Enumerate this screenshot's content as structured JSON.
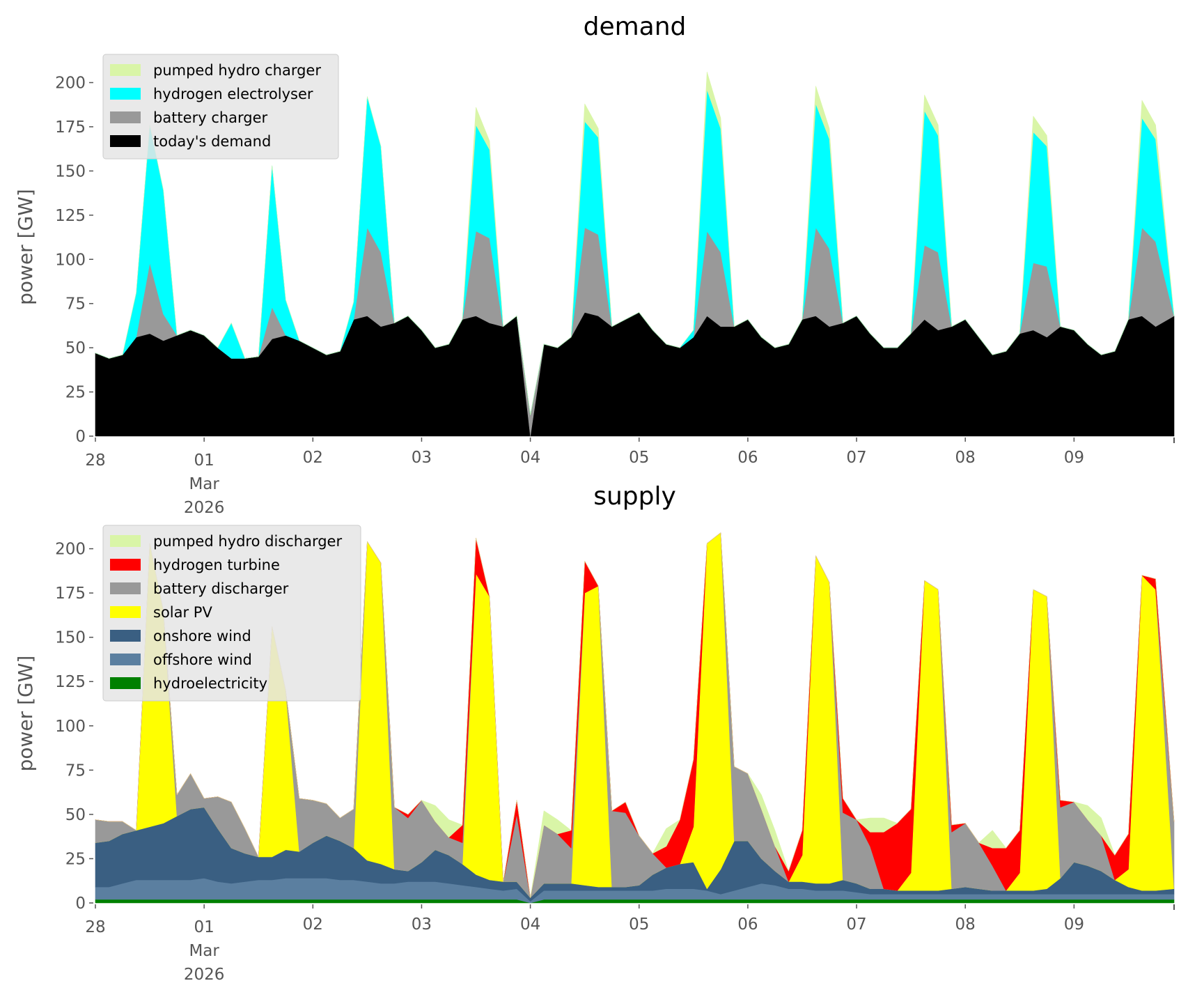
{
  "chart_data": [
    {
      "type": "area",
      "stacked": true,
      "title": "demand",
      "xlabel": "",
      "ylabel": "power [GW]",
      "x_unit": "days since 2026-02-28 00:00",
      "xlim": [
        0,
        9.92
      ],
      "ylim": [
        0,
        214
      ],
      "yticks": [
        0,
        25,
        50,
        75,
        100,
        125,
        150,
        175,
        200
      ],
      "xticks": [
        {
          "value": 0,
          "label": "28"
        },
        {
          "value": 1,
          "label": "01",
          "sublabel": "Mar",
          "sublabel2": "2026"
        },
        {
          "value": 2,
          "label": "02"
        },
        {
          "value": 3,
          "label": "03"
        },
        {
          "value": 4,
          "label": "04"
        },
        {
          "value": 5,
          "label": "05"
        },
        {
          "value": 6,
          "label": "06"
        },
        {
          "value": 7,
          "label": "07"
        },
        {
          "value": 8,
          "label": "08"
        },
        {
          "value": 9,
          "label": "09"
        }
      ],
      "grid": false,
      "legend_position": "top-left",
      "step_days": 0.125,
      "series": [
        {
          "name": "today's demand",
          "color": "#000000",
          "values": [
            47,
            44,
            46,
            56,
            58,
            54,
            57,
            60,
            57,
            50,
            44,
            44,
            45,
            55,
            57,
            54,
            50,
            46,
            48,
            66,
            68,
            62,
            64,
            68,
            60,
            50,
            52,
            66,
            68,
            64,
            62,
            68,
            0,
            52,
            50,
            56,
            70,
            68,
            62,
            66,
            70,
            60,
            52,
            50,
            56,
            68,
            62,
            62,
            66,
            56,
            50,
            52,
            66,
            68,
            62,
            64,
            68,
            58,
            50,
            50,
            58,
            66,
            60,
            62,
            66,
            56,
            46,
            48,
            58,
            60,
            56,
            62,
            60,
            52,
            46,
            48,
            66,
            68,
            62,
            68
          ]
        },
        {
          "name": "battery charger",
          "color": "#999999",
          "values": [
            0,
            0,
            0,
            0,
            40,
            15,
            0,
            0,
            0,
            0,
            0,
            0,
            0,
            18,
            0,
            0,
            0,
            0,
            0,
            0,
            50,
            42,
            0,
            0,
            0,
            0,
            0,
            0,
            48,
            48,
            0,
            0,
            12,
            0,
            0,
            0,
            48,
            46,
            0,
            0,
            0,
            0,
            0,
            0,
            0,
            48,
            42,
            0,
            0,
            0,
            0,
            0,
            0,
            50,
            44,
            0,
            0,
            0,
            0,
            0,
            0,
            42,
            44,
            0,
            0,
            0,
            0,
            0,
            0,
            38,
            40,
            0,
            0,
            0,
            0,
            0,
            0,
            50,
            48,
            0
          ]
        },
        {
          "name": "hydrogen electrolyser",
          "color": "#00ffff",
          "values": [
            0,
            0,
            0,
            25,
            78,
            70,
            0,
            0,
            0,
            0,
            20,
            0,
            0,
            80,
            20,
            0,
            0,
            0,
            0,
            10,
            74,
            60,
            0,
            0,
            0,
            0,
            0,
            0,
            60,
            50,
            0,
            0,
            0,
            0,
            0,
            0,
            60,
            55,
            0,
            0,
            0,
            0,
            0,
            0,
            4,
            80,
            70,
            0,
            0,
            0,
            0,
            0,
            0,
            70,
            62,
            0,
            0,
            0,
            0,
            0,
            0,
            76,
            66,
            0,
            0,
            0,
            0,
            0,
            0,
            74,
            68,
            0,
            0,
            0,
            0,
            0,
            0,
            62,
            58,
            0
          ]
        },
        {
          "name": "pumped hydro charger",
          "color": "#d9f5a7",
          "values": [
            0,
            0,
            0,
            0,
            0,
            0,
            0,
            0,
            0,
            0,
            0,
            0,
            0,
            0,
            0,
            0,
            0,
            0,
            0,
            0,
            0,
            0,
            0,
            0,
            0,
            0,
            0,
            0,
            10,
            5,
            0,
            0,
            0,
            0,
            0,
            0,
            10,
            5,
            0,
            0,
            0,
            0,
            0,
            0,
            0,
            10,
            6,
            0,
            0,
            0,
            0,
            0,
            0,
            10,
            6,
            0,
            0,
            0,
            0,
            0,
            0,
            9,
            6,
            0,
            0,
            0,
            0,
            0,
            0,
            9,
            6,
            0,
            0,
            0,
            0,
            0,
            0,
            10,
            8,
            0
          ]
        }
      ]
    },
    {
      "type": "area",
      "stacked": true,
      "title": "supply",
      "xlabel": "",
      "ylabel": "power [GW]",
      "x_unit": "days since 2026-02-28 00:00",
      "xlim": [
        0,
        9.92
      ],
      "ylim": [
        0,
        214
      ],
      "yticks": [
        0,
        25,
        50,
        75,
        100,
        125,
        150,
        175,
        200
      ],
      "xticks": [
        {
          "value": 0,
          "label": "28"
        },
        {
          "value": 1,
          "label": "01",
          "sublabel": "Mar",
          "sublabel2": "2026"
        },
        {
          "value": 2,
          "label": "02"
        },
        {
          "value": 3,
          "label": "03"
        },
        {
          "value": 4,
          "label": "04"
        },
        {
          "value": 5,
          "label": "05"
        },
        {
          "value": 6,
          "label": "06"
        },
        {
          "value": 7,
          "label": "07"
        },
        {
          "value": 8,
          "label": "08"
        },
        {
          "value": 9,
          "label": "09"
        }
      ],
      "grid": false,
      "legend_position": "top-left",
      "step_days": 0.125,
      "series": [
        {
          "name": "hydroelectricity",
          "color": "#008000",
          "values": [
            2,
            2,
            2,
            2,
            2,
            2,
            2,
            2,
            2,
            2,
            2,
            2,
            2,
            2,
            2,
            2,
            2,
            2,
            2,
            2,
            2,
            2,
            2,
            2,
            2,
            2,
            2,
            2,
            2,
            2,
            2,
            2,
            0,
            2,
            2,
            2,
            2,
            2,
            2,
            2,
            2,
            2,
            2,
            2,
            2,
            2,
            2,
            2,
            2,
            2,
            2,
            2,
            2,
            2,
            2,
            2,
            2,
            2,
            2,
            2,
            2,
            2,
            2,
            2,
            2,
            2,
            2,
            2,
            2,
            2,
            2,
            2,
            2,
            2,
            2,
            2,
            2,
            2,
            2,
            2
          ]
        },
        {
          "name": "offshore wind",
          "color": "#5b7fa0",
          "values": [
            7,
            7,
            9,
            11,
            11,
            11,
            11,
            11,
            12,
            10,
            9,
            10,
            11,
            11,
            12,
            12,
            12,
            12,
            11,
            11,
            10,
            9,
            9,
            10,
            10,
            10,
            9,
            8,
            7,
            6,
            5,
            6,
            1,
            5,
            5,
            5,
            5,
            5,
            5,
            5,
            5,
            5,
            6,
            6,
            6,
            5,
            3,
            5,
            7,
            9,
            8,
            6,
            6,
            5,
            5,
            5,
            4,
            3,
            3,
            3,
            3,
            3,
            3,
            3,
            3,
            3,
            3,
            3,
            3,
            3,
            3,
            3,
            3,
            3,
            3,
            3,
            3,
            3,
            3,
            3
          ]
        },
        {
          "name": "onshore wind",
          "color": "#3a5f82",
          "values": [
            25,
            26,
            28,
            28,
            30,
            32,
            36,
            40,
            40,
            30,
            20,
            16,
            13,
            13,
            16,
            15,
            20,
            24,
            22,
            18,
            12,
            11,
            8,
            6,
            11,
            18,
            16,
            12,
            7,
            5,
            5,
            4,
            2,
            4,
            4,
            4,
            3,
            2,
            2,
            2,
            3,
            9,
            12,
            14,
            15,
            1,
            14,
            28,
            26,
            14,
            8,
            4,
            4,
            4,
            4,
            6,
            5,
            3,
            3,
            2,
            2,
            2,
            2,
            3,
            4,
            3,
            2,
            2,
            2,
            2,
            3,
            9,
            18,
            16,
            13,
            8,
            4,
            2,
            2,
            3
          ]
        },
        {
          "name": "solar PV",
          "color": "#ffff00",
          "values": [
            0,
            0,
            0,
            0,
            160,
            120,
            0,
            0,
            0,
            0,
            0,
            0,
            0,
            130,
            90,
            0,
            0,
            0,
            0,
            0,
            180,
            170,
            0,
            0,
            0,
            0,
            0,
            0,
            170,
            160,
            0,
            0,
            0,
            0,
            0,
            0,
            165,
            170,
            0,
            0,
            0,
            0,
            0,
            0,
            20,
            195,
            190,
            0,
            0,
            0,
            0,
            0,
            15,
            185,
            170,
            0,
            0,
            0,
            0,
            0,
            10,
            175,
            170,
            0,
            0,
            0,
            0,
            0,
            10,
            170,
            165,
            0,
            0,
            0,
            0,
            0,
            10,
            178,
            170,
            0
          ]
        },
        {
          "name": "battery discharger",
          "color": "#999999",
          "values": [
            13,
            11,
            7,
            0,
            0,
            0,
            12,
            20,
            5,
            18,
            26,
            14,
            0,
            0,
            0,
            30,
            24,
            18,
            13,
            22,
            0,
            0,
            35,
            30,
            35,
            16,
            10,
            12,
            0,
            0,
            0,
            38,
            0,
            33,
            28,
            20,
            0,
            0,
            43,
            42,
            28,
            12,
            0,
            0,
            0,
            0,
            0,
            42,
            38,
            28,
            14,
            0,
            0,
            0,
            0,
            38,
            36,
            24,
            0,
            0,
            0,
            0,
            0,
            32,
            36,
            26,
            14,
            0,
            0,
            0,
            0,
            40,
            34,
            26,
            20,
            0,
            0,
            0,
            0,
            38
          ]
        },
        {
          "name": "hydrogen turbine",
          "color": "#ff0000",
          "values": [
            0,
            0,
            0,
            0,
            0,
            0,
            0,
            0,
            0,
            0,
            0,
            0,
            0,
            0,
            0,
            0,
            0,
            0,
            0,
            0,
            0,
            0,
            0,
            2,
            0,
            0,
            0,
            10,
            20,
            0,
            0,
            8,
            0,
            0,
            0,
            10,
            18,
            0,
            0,
            6,
            0,
            0,
            12,
            25,
            38,
            0,
            0,
            0,
            0,
            0,
            0,
            6,
            14,
            0,
            0,
            8,
            0,
            8,
            32,
            38,
            36,
            0,
            0,
            4,
            0,
            0,
            10,
            24,
            24,
            0,
            0,
            4,
            0,
            0,
            0,
            14,
            20,
            0,
            6,
            0
          ]
        },
        {
          "name": "pumped hydro discharger",
          "color": "#d9f5a7",
          "values": [
            0,
            0,
            0,
            0,
            0,
            0,
            0,
            0,
            0,
            0,
            0,
            0,
            0,
            0,
            0,
            0,
            0,
            0,
            0,
            0,
            0,
            0,
            0,
            0,
            0,
            9,
            10,
            0,
            0,
            0,
            0,
            0,
            0,
            8,
            8,
            0,
            0,
            0,
            0,
            0,
            0,
            0,
            10,
            0,
            0,
            0,
            0,
            0,
            0,
            8,
            9,
            0,
            0,
            0,
            0,
            0,
            0,
            8,
            8,
            0,
            0,
            0,
            0,
            0,
            0,
            0,
            10,
            0,
            0,
            0,
            0,
            0,
            0,
            8,
            10,
            0,
            0,
            0,
            0,
            0
          ]
        }
      ]
    }
  ],
  "legends": {
    "demand": [
      "pumped hydro charger",
      "hydrogen electrolyser",
      "battery charger",
      "today's demand"
    ],
    "supply": [
      "pumped hydro discharger",
      "hydrogen turbine",
      "battery discharger",
      "solar PV",
      "onshore wind",
      "offshore wind",
      "hydroelectricity"
    ]
  }
}
